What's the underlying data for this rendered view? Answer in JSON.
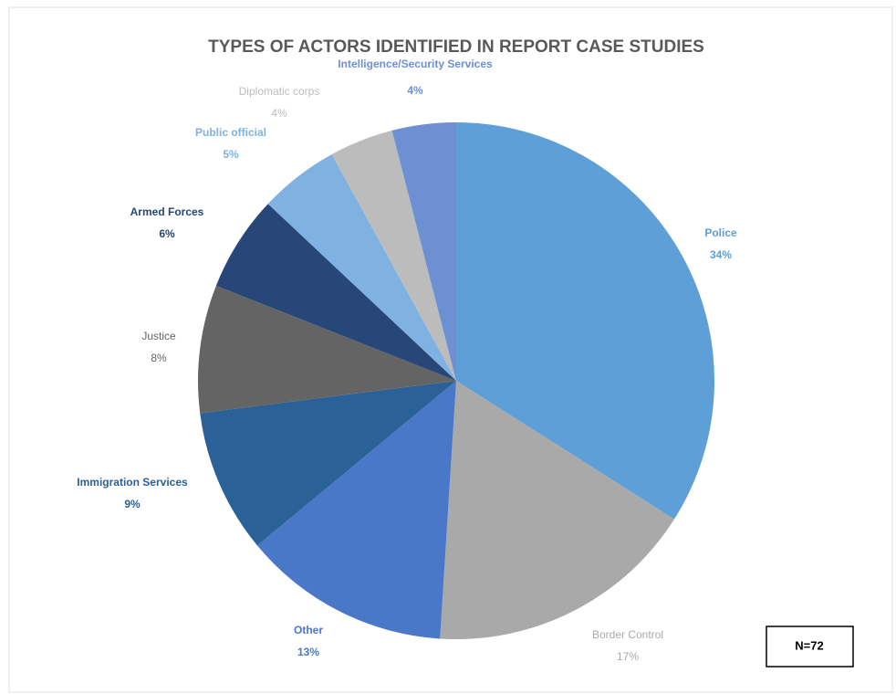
{
  "chart_data": {
    "type": "pie",
    "title": "TYPES OF ACTORS IDENTIFIED IN REPORT CASE STUDIES",
    "categories": [
      "Police",
      "Border Control",
      "Other",
      "Immigration Services",
      "Justice",
      "Armed Forces",
      "Public official",
      "Diplomatic corps",
      "Intelligence/Security Services"
    ],
    "values": [
      34,
      17,
      13,
      9,
      8,
      6,
      5,
      4,
      4
    ],
    "value_labels": [
      "34%",
      "17%",
      "13%",
      "9%",
      "8%",
      "6%",
      "5%",
      "4%",
      "4%"
    ],
    "colors": [
      "#5f9fd8",
      "#a9a9a9",
      "#4a78c8",
      "#2a6196",
      "#646464",
      "#274779",
      "#7fb2e0",
      "#bcbcbc",
      "#6c90d2"
    ],
    "annotation": "N=72"
  }
}
